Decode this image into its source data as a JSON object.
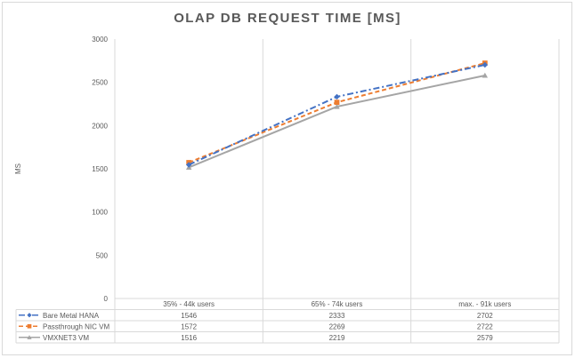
{
  "chart_data": {
    "type": "line",
    "title": "OLAP DB REQUEST TIME [MS]",
    "ylabel": "MS",
    "xlabel": "",
    "ylim": [
      0,
      3000
    ],
    "yticks": [
      "0",
      "500",
      "1000",
      "1500",
      "2000",
      "2500",
      "3000"
    ],
    "categories": [
      "35% - 44k users",
      "65% - 74k users",
      "max. - 91k users"
    ],
    "series": [
      {
        "name": "Bare Metal HANA",
        "values": [
          1546,
          2333,
          2702
        ],
        "color": "#4472c4",
        "marker": "diamond",
        "dash": "dashdot"
      },
      {
        "name": "Passthrough NIC VM",
        "values": [
          1572,
          2269,
          2722
        ],
        "color": "#ed7d31",
        "marker": "square",
        "dash": "dash"
      },
      {
        "name": "VMXNET3 VM",
        "values": [
          1516,
          2219,
          2579
        ],
        "color": "#a5a5a5",
        "marker": "triangle",
        "dash": "solid"
      }
    ],
    "grid": "vertical",
    "legend": "data-table"
  }
}
